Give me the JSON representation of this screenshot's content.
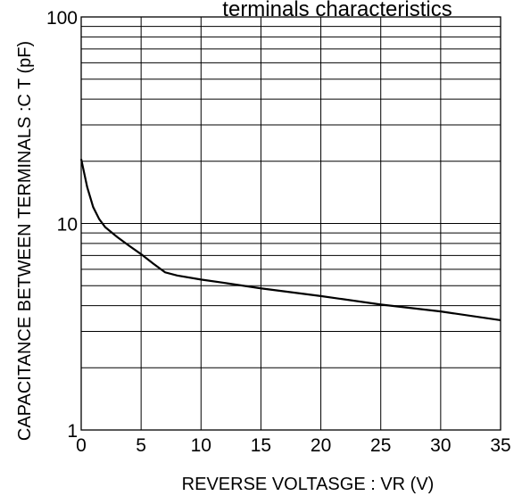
{
  "chart_data": {
    "type": "line",
    "title": "terminals characteristics",
    "xlabel": "REVERSE  VOLTASGE : VR (V)",
    "ylabel": "CAPACITANCE BETWEEN TERMINALS :C T  (pF)",
    "xlim": [
      0,
      35
    ],
    "ylim": [
      1,
      100
    ],
    "yscale": "log",
    "grid": true,
    "x_ticks": [
      "0",
      "5",
      "10",
      "15",
      "20",
      "25",
      "30",
      "35"
    ],
    "y_ticks": [
      "1",
      "10",
      "100"
    ],
    "series": [
      {
        "color": "#000000",
        "x": [
          0,
          0.5,
          1,
          1.5,
          2,
          3,
          4,
          5,
          6,
          7,
          8,
          10,
          12,
          15,
          20,
          25,
          30,
          35
        ],
        "y": [
          20.5,
          15,
          12,
          10.5,
          9.6,
          8.6,
          7.8,
          7.1,
          6.4,
          5.8,
          5.6,
          5.35,
          5.15,
          4.85,
          4.45,
          4.05,
          3.75,
          3.4
        ]
      }
    ]
  }
}
